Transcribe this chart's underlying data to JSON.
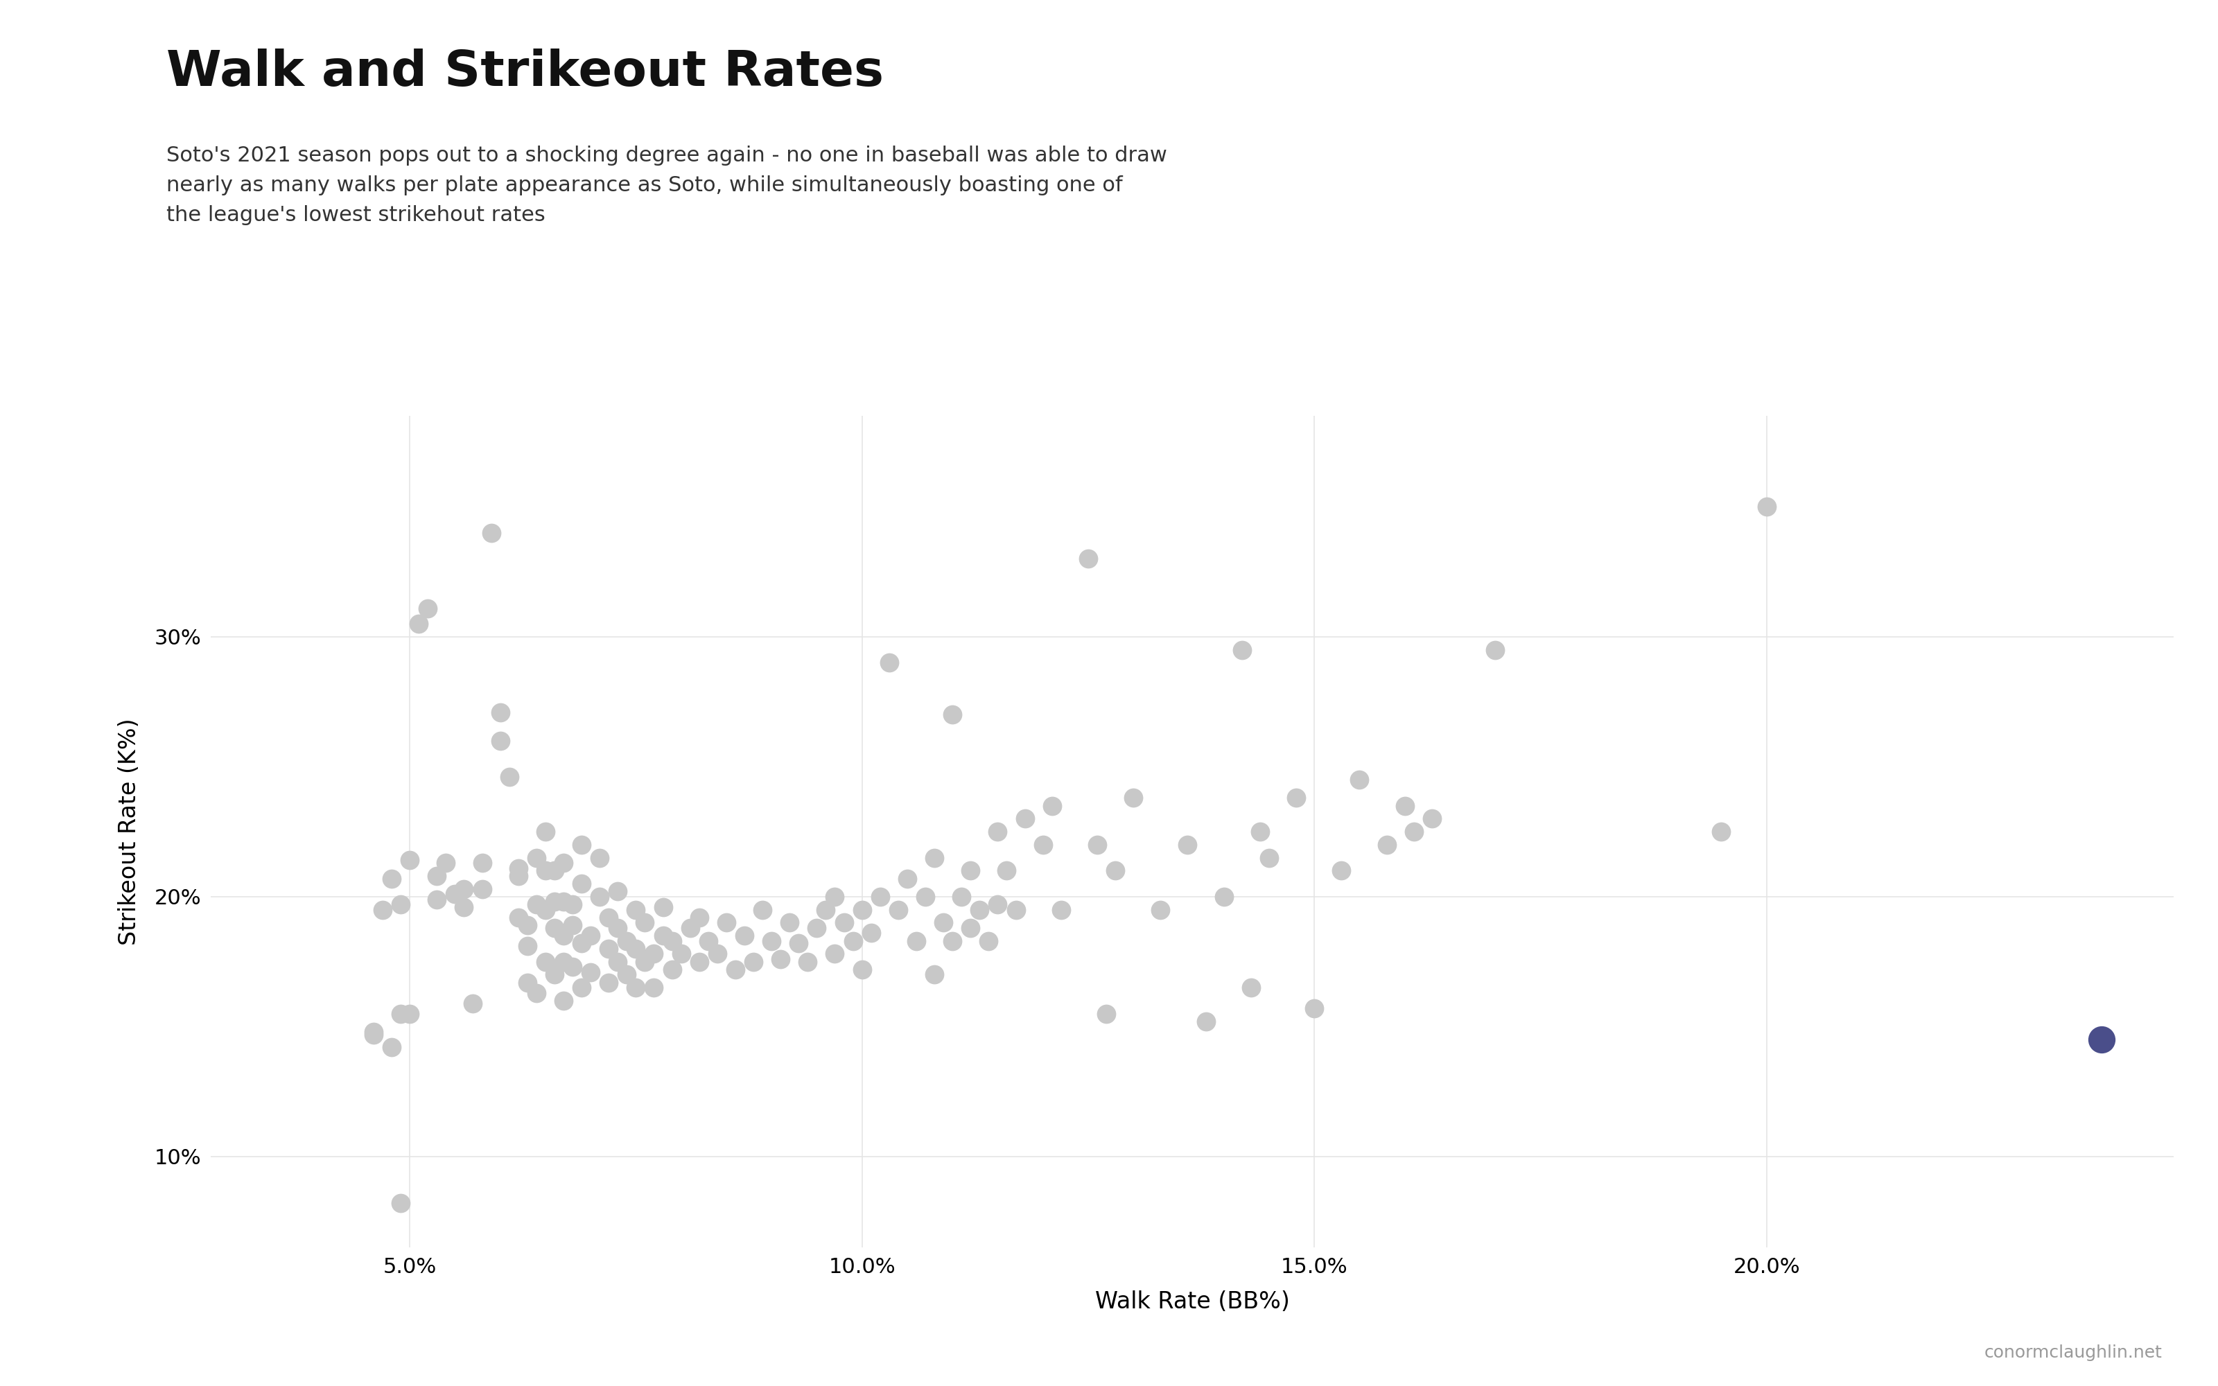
{
  "title": "Walk and Strikeout Rates",
  "subtitle": "Soto's 2021 season pops out to a shocking degree again - no one in baseball was able to draw\nnearly as many walks per plate appearance as Soto, while simultaneously boasting one of\nthe league's lowest strikehout rates",
  "xlabel": "Walk Rate (BB%)",
  "ylabel": "Strikeout Rate (K%)",
  "background_color": "#ffffff",
  "grid_color": "#e5e5e5",
  "dot_color": "#c8c8c8",
  "soto_color": "#4a4e8a",
  "credit": "conormclaughlin.net",
  "xlim": [
    0.028,
    0.245
  ],
  "ylim": [
    0.065,
    0.385
  ],
  "xticks": [
    0.05,
    0.1,
    0.15,
    0.2
  ],
  "yticks": [
    0.1,
    0.2,
    0.3
  ],
  "players": [
    [
      0.046,
      0.147
    ],
    [
      0.046,
      0.148
    ],
    [
      0.047,
      0.195
    ],
    [
      0.048,
      0.207
    ],
    [
      0.048,
      0.142
    ],
    [
      0.049,
      0.155
    ],
    [
      0.049,
      0.197
    ],
    [
      0.049,
      0.082
    ],
    [
      0.05,
      0.155
    ],
    [
      0.05,
      0.214
    ],
    [
      0.051,
      0.305
    ],
    [
      0.052,
      0.311
    ],
    [
      0.053,
      0.199
    ],
    [
      0.053,
      0.208
    ],
    [
      0.054,
      0.213
    ],
    [
      0.055,
      0.201
    ],
    [
      0.056,
      0.196
    ],
    [
      0.056,
      0.203
    ],
    [
      0.057,
      0.159
    ],
    [
      0.058,
      0.203
    ],
    [
      0.058,
      0.213
    ],
    [
      0.059,
      0.34
    ],
    [
      0.06,
      0.26
    ],
    [
      0.06,
      0.271
    ],
    [
      0.061,
      0.246
    ],
    [
      0.062,
      0.192
    ],
    [
      0.062,
      0.208
    ],
    [
      0.062,
      0.211
    ],
    [
      0.063,
      0.167
    ],
    [
      0.063,
      0.181
    ],
    [
      0.063,
      0.189
    ],
    [
      0.064,
      0.163
    ],
    [
      0.064,
      0.197
    ],
    [
      0.064,
      0.215
    ],
    [
      0.065,
      0.175
    ],
    [
      0.065,
      0.195
    ],
    [
      0.065,
      0.21
    ],
    [
      0.065,
      0.225
    ],
    [
      0.066,
      0.17
    ],
    [
      0.066,
      0.188
    ],
    [
      0.066,
      0.198
    ],
    [
      0.066,
      0.21
    ],
    [
      0.067,
      0.16
    ],
    [
      0.067,
      0.175
    ],
    [
      0.067,
      0.185
    ],
    [
      0.067,
      0.198
    ],
    [
      0.067,
      0.213
    ],
    [
      0.068,
      0.173
    ],
    [
      0.068,
      0.189
    ],
    [
      0.068,
      0.197
    ],
    [
      0.069,
      0.165
    ],
    [
      0.069,
      0.182
    ],
    [
      0.069,
      0.205
    ],
    [
      0.069,
      0.22
    ],
    [
      0.07,
      0.171
    ],
    [
      0.07,
      0.185
    ],
    [
      0.071,
      0.2
    ],
    [
      0.071,
      0.215
    ],
    [
      0.072,
      0.167
    ],
    [
      0.072,
      0.18
    ],
    [
      0.072,
      0.192
    ],
    [
      0.073,
      0.175
    ],
    [
      0.073,
      0.188
    ],
    [
      0.073,
      0.202
    ],
    [
      0.074,
      0.17
    ],
    [
      0.074,
      0.183
    ],
    [
      0.075,
      0.165
    ],
    [
      0.075,
      0.18
    ],
    [
      0.075,
      0.195
    ],
    [
      0.076,
      0.175
    ],
    [
      0.076,
      0.19
    ],
    [
      0.077,
      0.165
    ],
    [
      0.077,
      0.178
    ],
    [
      0.078,
      0.185
    ],
    [
      0.078,
      0.196
    ],
    [
      0.079,
      0.172
    ],
    [
      0.079,
      0.183
    ],
    [
      0.08,
      0.178
    ],
    [
      0.081,
      0.188
    ],
    [
      0.082,
      0.175
    ],
    [
      0.082,
      0.192
    ],
    [
      0.083,
      0.183
    ],
    [
      0.084,
      0.178
    ],
    [
      0.085,
      0.19
    ],
    [
      0.086,
      0.172
    ],
    [
      0.087,
      0.185
    ],
    [
      0.088,
      0.175
    ],
    [
      0.089,
      0.195
    ],
    [
      0.09,
      0.183
    ],
    [
      0.091,
      0.176
    ],
    [
      0.092,
      0.19
    ],
    [
      0.093,
      0.182
    ],
    [
      0.094,
      0.175
    ],
    [
      0.095,
      0.188
    ],
    [
      0.096,
      0.195
    ],
    [
      0.097,
      0.178
    ],
    [
      0.097,
      0.2
    ],
    [
      0.098,
      0.19
    ],
    [
      0.099,
      0.183
    ],
    [
      0.1,
      0.172
    ],
    [
      0.1,
      0.195
    ],
    [
      0.101,
      0.186
    ],
    [
      0.102,
      0.2
    ],
    [
      0.103,
      0.29
    ],
    [
      0.104,
      0.195
    ],
    [
      0.105,
      0.207
    ],
    [
      0.106,
      0.183
    ],
    [
      0.107,
      0.2
    ],
    [
      0.108,
      0.215
    ],
    [
      0.108,
      0.17
    ],
    [
      0.109,
      0.19
    ],
    [
      0.11,
      0.183
    ],
    [
      0.11,
      0.27
    ],
    [
      0.111,
      0.2
    ],
    [
      0.112,
      0.188
    ],
    [
      0.112,
      0.21
    ],
    [
      0.113,
      0.195
    ],
    [
      0.114,
      0.183
    ],
    [
      0.115,
      0.225
    ],
    [
      0.115,
      0.197
    ],
    [
      0.116,
      0.21
    ],
    [
      0.117,
      0.195
    ],
    [
      0.118,
      0.23
    ],
    [
      0.12,
      0.22
    ],
    [
      0.121,
      0.235
    ],
    [
      0.122,
      0.195
    ],
    [
      0.125,
      0.33
    ],
    [
      0.126,
      0.22
    ],
    [
      0.127,
      0.155
    ],
    [
      0.128,
      0.21
    ],
    [
      0.13,
      0.238
    ],
    [
      0.133,
      0.195
    ],
    [
      0.136,
      0.22
    ],
    [
      0.138,
      0.152
    ],
    [
      0.14,
      0.2
    ],
    [
      0.142,
      0.295
    ],
    [
      0.143,
      0.165
    ],
    [
      0.144,
      0.225
    ],
    [
      0.145,
      0.215
    ],
    [
      0.148,
      0.238
    ],
    [
      0.15,
      0.157
    ],
    [
      0.153,
      0.21
    ],
    [
      0.155,
      0.245
    ],
    [
      0.158,
      0.22
    ],
    [
      0.16,
      0.235
    ],
    [
      0.161,
      0.225
    ],
    [
      0.163,
      0.23
    ],
    [
      0.17,
      0.295
    ],
    [
      0.195,
      0.225
    ],
    [
      0.2,
      0.35
    ]
  ],
  "soto": [
    0.237,
    0.145
  ]
}
